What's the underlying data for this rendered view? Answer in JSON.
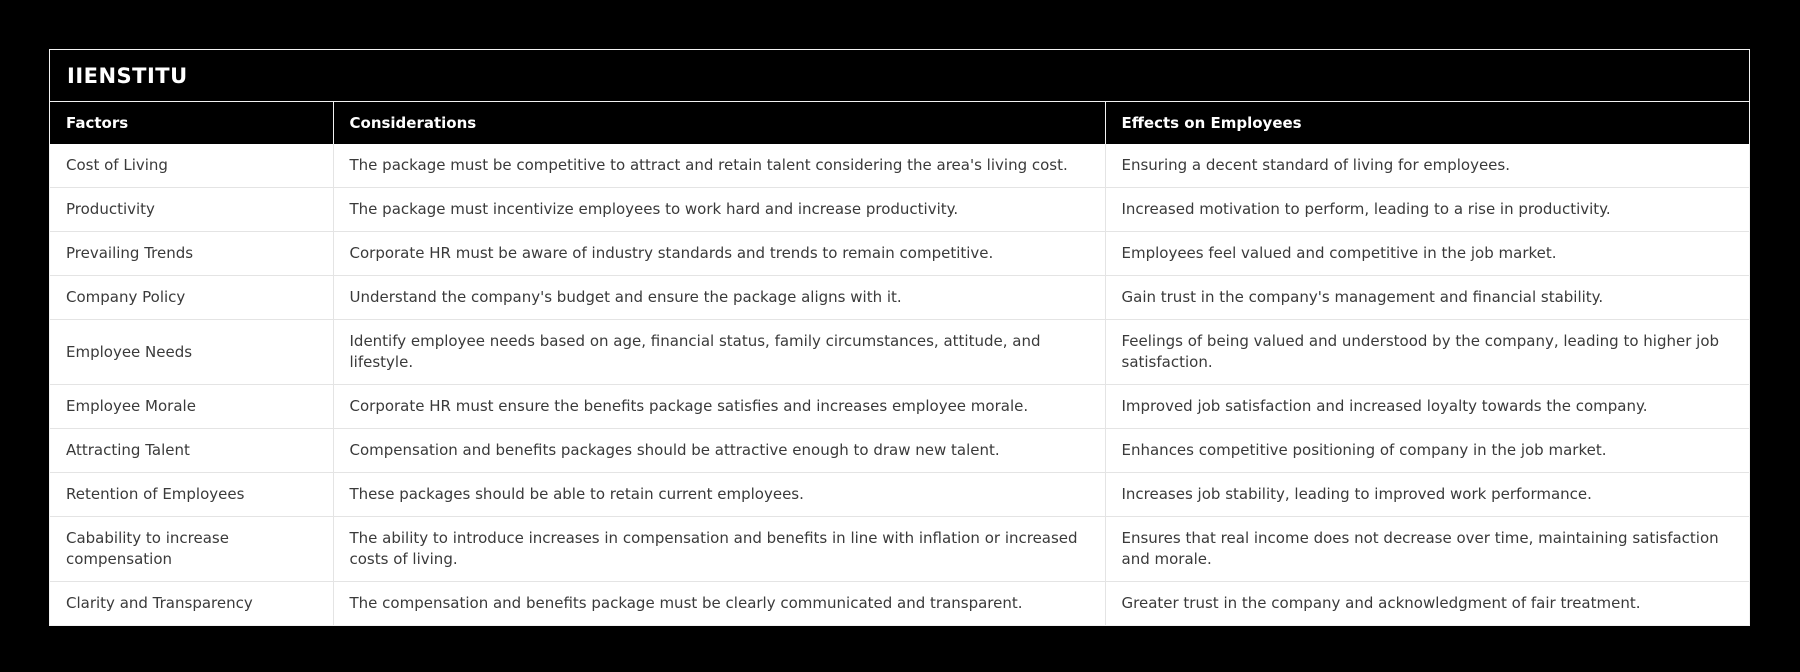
{
  "page": {
    "background_color": "#000000"
  },
  "table": {
    "title": "IIENSTITU",
    "colors": {
      "header_bg": "#000000",
      "header_text": "#ffffff",
      "body_bg": "#ffffff",
      "body_text": "#3a3a3a",
      "row_border": "#e4e4e4"
    },
    "columns": [
      "Factors",
      "Considerations",
      "Effects on Employees"
    ],
    "rows": [
      {
        "factor": "Cost of Living",
        "consideration": "The package must be competitive to attract and retain talent considering the area's living cost.",
        "effect": "Ensuring a decent standard of living for employees."
      },
      {
        "factor": "Productivity",
        "consideration": "The package must incentivize employees to work hard and increase productivity.",
        "effect": "Increased motivation to perform, leading to a rise in productivity."
      },
      {
        "factor": "Prevailing Trends",
        "consideration": "Corporate HR must be aware of industry standards and trends to remain competitive.",
        "effect": "Employees feel valued and competitive in the job market."
      },
      {
        "factor": "Company Policy",
        "consideration": "Understand the company's budget and ensure the package aligns with it.",
        "effect": "Gain trust in the company's management and financial stability."
      },
      {
        "factor": "Employee Needs",
        "consideration": "Identify employee needs based on age, financial status, family circumstances, attitude, and lifestyle.",
        "effect": "Feelings of being valued and understood by the company, leading to higher job satisfaction."
      },
      {
        "factor": "Employee Morale",
        "consideration": "Corporate HR must ensure the benefits package satisfies and increases employee morale.",
        "effect": "Improved job satisfaction and increased loyalty towards the company."
      },
      {
        "factor": "Attracting Talent",
        "consideration": "Compensation and benefits packages should be attractive enough to draw new talent.",
        "effect": "Enhances competitive positioning of company in the job market."
      },
      {
        "factor": "Retention of Employees",
        "consideration": "These packages should be able to retain current employees.",
        "effect": "Increases job stability, leading to improved work performance."
      },
      {
        "factor": "Cabability to increase compensation",
        "consideration": "The ability to introduce increases in compensation and benefits in line with inflation or increased costs of living.",
        "effect": "Ensures that real income does not decrease over time, maintaining satisfaction and morale."
      },
      {
        "factor": "Clarity and Transparency",
        "consideration": "The compensation and benefits package must be clearly communicated and transparent.",
        "effect": "Greater trust in the company and acknowledgment of fair treatment."
      }
    ]
  }
}
